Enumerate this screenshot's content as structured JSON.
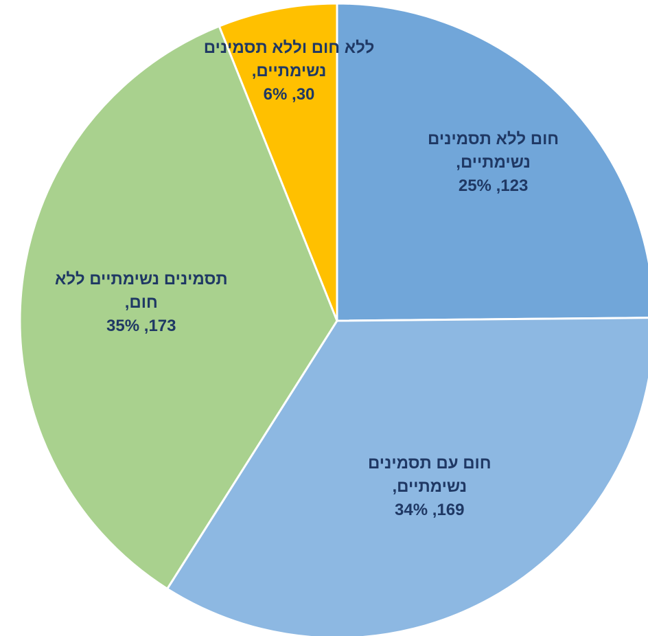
{
  "chart_data": {
    "type": "pie",
    "categories": [
      "חום ללא תסמינים נשימתיים,",
      "חום עם תסמינים נשימתיים,",
      "תסמינים נשימתיים ללא חום,",
      "ללא חום וללא תסמינים נשימתיים,"
    ],
    "values": [
      123,
      169,
      173,
      30
    ],
    "value_labels": [
      "123, 25%",
      "169, 34%",
      "173, 35%",
      "30, 6%"
    ],
    "colors": [
      "#71a6d9",
      "#8db8e2",
      "#a9d18e",
      "#ffc000"
    ]
  }
}
